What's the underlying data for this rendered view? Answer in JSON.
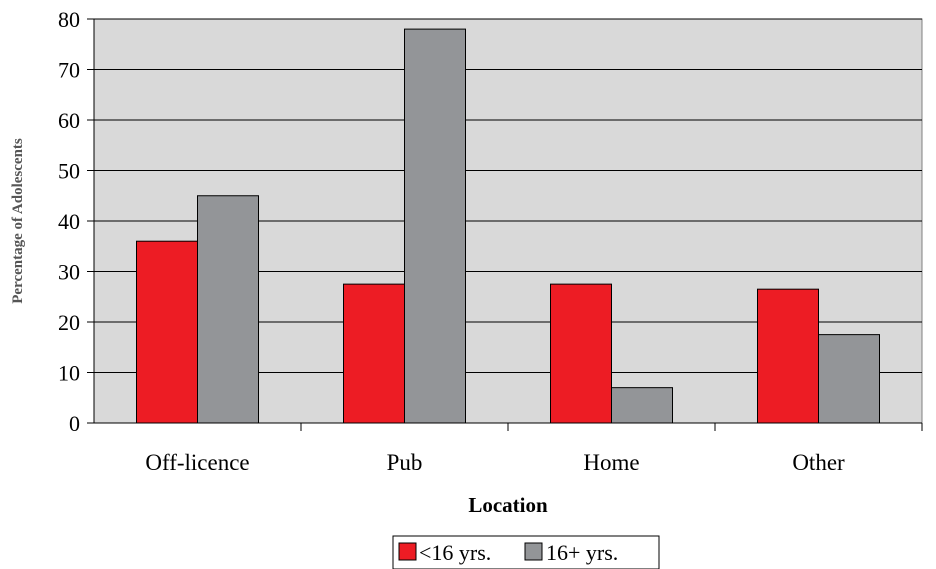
{
  "chart_data": {
    "type": "bar",
    "title": "",
    "xlabel": "Location",
    "ylabel": "Percentage of Adolescents",
    "categories": [
      "Off-licence",
      "Pub",
      "Home",
      "Other"
    ],
    "series": [
      {
        "name": "<16 yrs.",
        "color": "#ed1c24",
        "values": [
          36,
          27.5,
          27.5,
          26.5
        ]
      },
      {
        "name": "16+ yrs.",
        "color": "#939598",
        "values": [
          45,
          78,
          7,
          17.5
        ]
      }
    ],
    "ylim": [
      0,
      80
    ],
    "yticks": [
      "0",
      "10",
      "20",
      "30",
      "40",
      "50",
      "60",
      "70",
      "80"
    ],
    "grid": true,
    "plot_background": "#d9d9d9",
    "legend_position": "bottom"
  }
}
